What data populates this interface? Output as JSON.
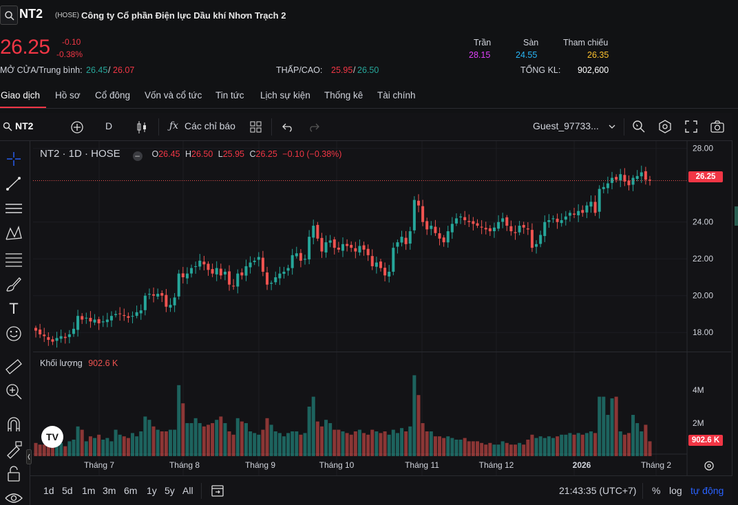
{
  "header": {
    "symbol": "NT2",
    "exchange": "(HOSE)",
    "company": "Công ty Cổ phần Điện lực Dầu khí Nhơn Trạch 2",
    "price": "26.25",
    "change": "-0.10",
    "change_pct": "-0.38%",
    "ceiling_label": "Trần",
    "ceiling": "28.15",
    "floor_label": "Sàn",
    "floor": "24.55",
    "ref_label": "Tham chiếu",
    "ref": "26.35",
    "open_avg_label": "MỞ CỬA/Trung bình:",
    "open": "26.45",
    "avg": "26.07",
    "lowhigh_label": "THẤP/CAO:",
    "low": "25.95",
    "high": "26.50",
    "volume_label": "TỔNG KL:",
    "volume": "902,600",
    "slash": "/"
  },
  "tabs": [
    "Giao dịch",
    "Hồ sơ",
    "Cổ đông",
    "Vốn và cổ tức",
    "Tin tức",
    "Lịch sự kiện",
    "Thống kê",
    "Tài chính"
  ],
  "toolbar": {
    "symbol": "NT2",
    "interval": "D",
    "indicators": "Các chỉ báo",
    "user": "Guest_97733..."
  },
  "legend": {
    "title": "NT2 · 1D · HOSE",
    "o_label": "O",
    "o": "26.45",
    "h_label": "H",
    "h": "26.50",
    "l_label": "L",
    "l": "25.95",
    "c_label": "C",
    "c": "26.25",
    "chg": "−0.10 (−0.38%)"
  },
  "volume_pane": {
    "label": "Khối lượng",
    "value": "902.6 K"
  },
  "last_price_badge": "26.25",
  "last_volume_badge": "902.6 K",
  "bottom": {
    "ranges": [
      "1d",
      "5d",
      "1m",
      "3m",
      "6m",
      "1y",
      "5y",
      "All"
    ],
    "clock": "21:43:35 (UTC+7)",
    "pct": "%",
    "log": "log",
    "auto": "tự động"
  },
  "colors": {
    "up": "#26a69a",
    "down": "#ef5350",
    "accent": "#f23645"
  },
  "chart_data": {
    "type": "candlestick",
    "y_ticks": [
      "28.00",
      "24.00",
      "22.00",
      "20.00",
      "18.00"
    ],
    "ylim": [
      17,
      28.4
    ],
    "volume_ticks": [
      "4M",
      "2M"
    ],
    "x_labels": [
      "Tháng 7",
      "Tháng 8",
      "Tháng 9",
      "Tháng 10",
      "Tháng 11",
      "Tháng 12",
      "2026",
      "Tháng 2"
    ],
    "last_close": 26.25,
    "closes": [
      18.1,
      17.9,
      17.8,
      17.6,
      17.5,
      17.7,
      17.8,
      17.7,
      17.9,
      18.2,
      18.9,
      18.7,
      18.8,
      18.6,
      18.7,
      18.5,
      18.6,
      18.7,
      18.9,
      19.0,
      19.0,
      18.9,
      18.8,
      18.9,
      19.1,
      19.2,
      20.0,
      20.1,
      20.0,
      20.1,
      20.0,
      19.4,
      19.5,
      19.9,
      21.2,
      21.0,
      21.2,
      21.5,
      21.6,
      21.9,
      21.7,
      21.4,
      21.2,
      21.5,
      21.1,
      21.3,
      20.6,
      20.5,
      21.2,
      21.1,
      21.6,
      21.8,
      21.9,
      22.1,
      21.3,
      20.6,
      20.7,
      21.0,
      21.2,
      21.3,
      21.5,
      22.2,
      22.3,
      21.9,
      22.0,
      23.2,
      23.8,
      23.1,
      22.4,
      22.9,
      23.0,
      22.6,
      22.5,
      22.8,
      22.7,
      22.6,
      22.4,
      22.7,
      22.5,
      22.2,
      21.6,
      21.8,
      21.5,
      21.1,
      21.3,
      22.6,
      22.9,
      23.2,
      22.8,
      23.5,
      25.2,
      24.9,
      24.0,
      23.6,
      23.8,
      23.4,
      23.1,
      22.9,
      23.5,
      23.9,
      24.2,
      24.3,
      24.1,
      24.0,
      23.9,
      23.8,
      23.7,
      23.6,
      23.5,
      23.7,
      24.0,
      24.2,
      23.8,
      23.5,
      23.4,
      23.8,
      23.7,
      23.6,
      22.6,
      22.8,
      23.3,
      24.0,
      24.1,
      24.2,
      24.0,
      24.1,
      24.3,
      24.5,
      24.4,
      24.6,
      24.5,
      24.9,
      25.1,
      24.5,
      25.8,
      25.9,
      26.1,
      26.4,
      26.3,
      26.6,
      26.2,
      26.0,
      26.4,
      26.5,
      26.7,
      26.3,
      26.25
    ],
    "volumes": [
      0.8,
      0.7,
      0.7,
      0.9,
      0.8,
      0.7,
      0.8,
      0.6,
      0.9,
      1.0,
      1.8,
      1.6,
      0.9,
      1.2,
      1.1,
      1.3,
      1.0,
      1.1,
      0.9,
      1.6,
      1.3,
      1.2,
      1.1,
      1.4,
      1.2,
      1.5,
      2.4,
      2.2,
      1.8,
      1.6,
      1.5,
      1.5,
      1.6,
      1.6,
      4.3,
      3.2,
      2.0,
      2.0,
      2.3,
      2.0,
      1.8,
      1.9,
      2.0,
      2.2,
      2.4,
      2.0,
      1.5,
      1.3,
      2.3,
      2.1,
      2.0,
      1.5,
      1.4,
      1.3,
      1.6,
      2.3,
      1.9,
      1.5,
      1.4,
      1.2,
      1.4,
      1.5,
      1.5,
      1.3,
      1.4,
      3.0,
      3.6,
      2.1,
      1.8,
      2.2,
      2.0,
      1.6,
      1.6,
      1.5,
      1.4,
      1.3,
      1.5,
      1.6,
      1.4,
      1.3,
      1.6,
      1.5,
      1.4,
      1.5,
      1.3,
      1.6,
      1.4,
      1.7,
      1.5,
      1.8,
      4.9,
      3.7,
      2.0,
      1.5,
      1.5,
      1.2,
      1.2,
      1.1,
      1.2,
      1.1,
      1.0,
      1.0,
      1.1,
      0.9,
      0.9,
      0.9,
      0.8,
      0.7,
      0.8,
      0.7,
      0.7,
      0.9,
      0.8,
      0.7,
      0.7,
      0.8,
      0.7,
      1.0,
      1.3,
      1.1,
      1.2,
      1.1,
      1.2,
      1.1,
      1.2,
      1.3,
      1.3,
      1.4,
      1.3,
      1.4,
      1.3,
      1.4,
      1.5,
      1.4,
      3.6,
      3.6,
      2.5,
      3.5,
      3.6,
      1.5,
      1.3,
      1.4,
      2.5,
      2.0,
      1.5,
      1.9,
      0.9
    ]
  }
}
